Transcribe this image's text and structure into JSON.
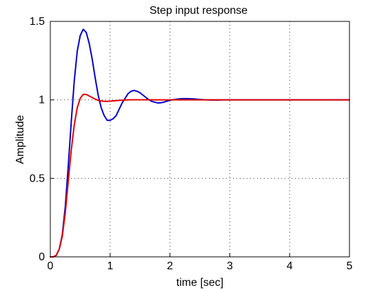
{
  "chart_data": {
    "type": "line",
    "title": "Step input response",
    "xlabel": "time [sec]",
    "ylabel": "Amplitude",
    "xlim": [
      0,
      5
    ],
    "ylim": [
      0,
      1.5
    ],
    "x_ticks": [
      "0",
      "1",
      "2",
      "3",
      "4",
      "5"
    ],
    "y_ticks": [
      "0",
      "0.5",
      "1",
      "1.5"
    ],
    "grid": true,
    "series": [
      {
        "color": "#0000cc",
        "x": [
          0,
          0.05,
          0.1,
          0.15,
          0.2,
          0.25,
          0.3,
          0.35,
          0.4,
          0.45,
          0.5,
          0.55,
          0.6,
          0.65,
          0.7,
          0.75,
          0.8,
          0.85,
          0.9,
          0.95,
          1.0,
          1.05,
          1.1,
          1.15,
          1.2,
          1.25,
          1.3,
          1.35,
          1.4,
          1.45,
          1.5,
          1.55,
          1.6,
          1.65,
          1.7,
          1.75,
          1.8,
          1.85,
          1.9,
          1.95,
          2.0,
          2.1,
          2.2,
          2.3,
          2.4,
          2.5,
          2.6,
          2.7,
          2.8,
          2.9,
          3.0,
          3.5,
          4.0,
          4.5,
          5.0
        ],
        "y": [
          0,
          0,
          0.01,
          0.05,
          0.14,
          0.32,
          0.58,
          0.86,
          1.12,
          1.31,
          1.41,
          1.45,
          1.43,
          1.36,
          1.26,
          1.14,
          1.03,
          0.95,
          0.9,
          0.87,
          0.87,
          0.88,
          0.9,
          0.94,
          0.98,
          1.01,
          1.04,
          1.055,
          1.06,
          1.055,
          1.045,
          1.03,
          1.015,
          1.0,
          0.99,
          0.985,
          0.98,
          0.982,
          0.986,
          0.992,
          0.998,
          1.004,
          1.008,
          1.008,
          1.006,
          1.003,
          1.0,
          0.999,
          0.999,
          1.0,
          1.0,
          1.0,
          1.0,
          1.0,
          1.0
        ]
      },
      {
        "color": "#e00000",
        "x": [
          0,
          0.05,
          0.1,
          0.15,
          0.2,
          0.25,
          0.3,
          0.35,
          0.4,
          0.45,
          0.5,
          0.55,
          0.6,
          0.65,
          0.7,
          0.75,
          0.8,
          0.85,
          0.9,
          0.95,
          1.0,
          1.1,
          1.2,
          1.3,
          1.4,
          1.5,
          1.6,
          1.8,
          2.0,
          2.5,
          3.0,
          3.5,
          4.0,
          4.5,
          5.0
        ],
        "y": [
          0,
          0,
          0.01,
          0.05,
          0.13,
          0.28,
          0.48,
          0.68,
          0.84,
          0.95,
          1.01,
          1.035,
          1.035,
          1.025,
          1.015,
          1.005,
          0.997,
          0.993,
          0.991,
          0.991,
          0.992,
          0.995,
          0.998,
          1.0,
          1.001,
          1.001,
          1.001,
          1.0,
          1.0,
          1.0,
          1.0,
          1.0,
          1.0,
          1.0,
          1.0
        ]
      }
    ]
  }
}
